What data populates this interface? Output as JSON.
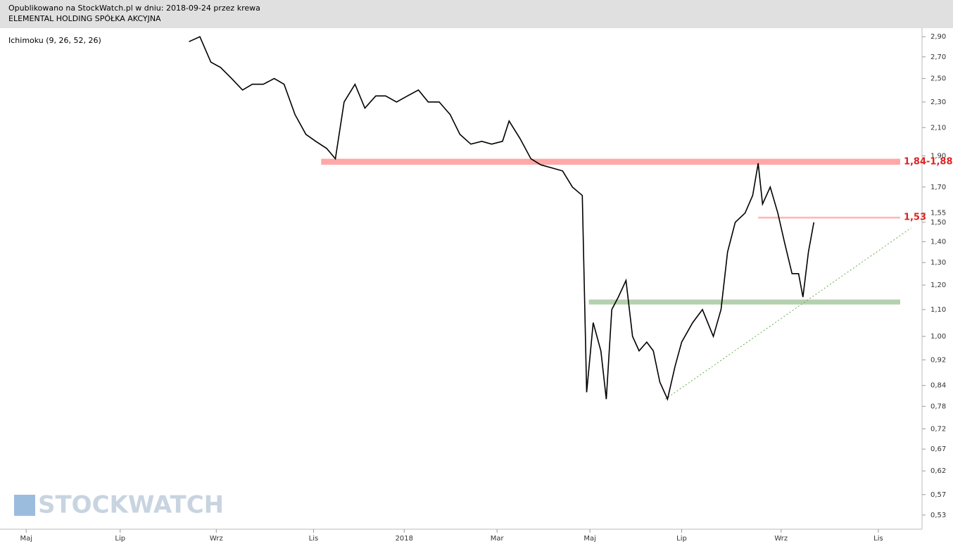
{
  "header": {
    "published": "Opublikowano na StockWatch.pl w dniu: 2018-09-24 przez krewa",
    "company": "ELEMENTAL HOLDING SPÓŁKA AKCYJNA"
  },
  "watermark": "STOCKWATCH",
  "chart_data": {
    "type": "line",
    "indicator": "Ichimoku (9, 26, 52, 26)",
    "log_scale": true,
    "xlim": [
      -2.4,
      82
    ],
    "ylim": [
      0.504,
      2.99
    ],
    "xticks": [
      {
        "value": 0,
        "label": "Maj"
      },
      {
        "value": 8.6,
        "label": "Lip"
      },
      {
        "value": 17.4,
        "label": "Wrz"
      },
      {
        "value": 26.3,
        "label": "Lis"
      },
      {
        "value": 34.6,
        "label": "2018"
      },
      {
        "value": 43.1,
        "label": "Mar"
      },
      {
        "value": 51.6,
        "label": "Maj"
      },
      {
        "value": 60,
        "label": "Lip"
      },
      {
        "value": 69.1,
        "label": "Wrz"
      },
      {
        "value": 78,
        "label": "Lis"
      }
    ],
    "yticks": [
      {
        "value": 2.9,
        "label": "2,90"
      },
      {
        "value": 2.7,
        "label": "2,70"
      },
      {
        "value": 2.5,
        "label": "2,50"
      },
      {
        "value": 2.3,
        "label": "2,30"
      },
      {
        "value": 2.1,
        "label": "2,10"
      },
      {
        "value": 1.9,
        "label": "1,90"
      },
      {
        "value": 1.7,
        "label": "1,70"
      },
      {
        "value": 1.55,
        "label": "1,55"
      },
      {
        "value": 1.5,
        "label": "1,50"
      },
      {
        "value": 1.4,
        "label": "1,40"
      },
      {
        "value": 1.3,
        "label": "1,30"
      },
      {
        "value": 1.2,
        "label": "1,20"
      },
      {
        "value": 1.1,
        "label": "1,10"
      },
      {
        "value": 1,
        "label": "1,00"
      },
      {
        "value": 0.92,
        "label": "0,92"
      },
      {
        "value": 0.84,
        "label": "0,84"
      },
      {
        "value": 0.78,
        "label": "0,78"
      },
      {
        "value": 0.72,
        "label": "0,72"
      },
      {
        "value": 0.67,
        "label": "0,67"
      },
      {
        "value": 0.62,
        "label": "0,62"
      },
      {
        "value": 0.57,
        "label": "0,57"
      },
      {
        "value": 0.53,
        "label": "0,53"
      }
    ],
    "series": [
      {
        "color": "#000000",
        "x": [
          14.9,
          15.9,
          16.9,
          17.8,
          18.8,
          19.8,
          20.7,
          21.7,
          22.7,
          23.6,
          24.6,
          25.6,
          26.5,
          27.5,
          28.3,
          29.1,
          30.1,
          31.0,
          32.0,
          32.9,
          33.9,
          34.9,
          35.9,
          36.8,
          37.8,
          38.8,
          39.7,
          40.7,
          41.7,
          42.6,
          43.6,
          44.2,
          45.2,
          46.2,
          47.1,
          48.1,
          49.1,
          50.0,
          50.9,
          51.3,
          51.9,
          52.6,
          53.1,
          53.6,
          54.2,
          54.9,
          55.5,
          56.1,
          56.8,
          57.4,
          58.0,
          58.7,
          59.4,
          60.0,
          61.0,
          61.9,
          62.9,
          63.6,
          64.2,
          64.9,
          65.8,
          66.5,
          67.0,
          67.4,
          68.1,
          68.8,
          69.4,
          70.1,
          70.7,
          71.1,
          71.6,
          72.1
        ],
        "values": [
          2.85,
          2.9,
          2.65,
          2.6,
          2.5,
          2.4,
          2.45,
          2.45,
          2.5,
          2.45,
          2.2,
          2.05,
          2.0,
          1.95,
          1.88,
          2.3,
          2.45,
          2.25,
          2.35,
          2.35,
          2.3,
          2.35,
          2.4,
          2.3,
          2.3,
          2.2,
          2.05,
          1.98,
          2.0,
          1.98,
          2.0,
          2.15,
          2.02,
          1.88,
          1.84,
          1.82,
          1.8,
          1.7,
          1.65,
          0.82,
          1.05,
          0.95,
          0.8,
          1.1,
          1.15,
          1.22,
          1.0,
          0.95,
          0.98,
          0.95,
          0.85,
          0.8,
          0.9,
          0.98,
          1.05,
          1.1,
          1.0,
          1.1,
          1.35,
          1.5,
          1.55,
          1.65,
          1.85,
          1.6,
          1.7,
          1.55,
          1.4,
          1.25,
          1.25,
          1.15,
          1.35,
          1.5
        ]
      }
    ],
    "annotations": [
      {
        "label": "1,84-1,88",
        "low": 1.84,
        "high": 1.88,
        "x": [
          27,
          80
        ],
        "color": "#ff9999"
      },
      {
        "label": "1,53",
        "low": 1.52,
        "high": 1.53,
        "x": [
          67,
          80
        ],
        "color": "#ffaaaa"
      },
      {
        "low": 1.12,
        "high": 1.14,
        "x": [
          51.5,
          80
        ],
        "color": "#a8c8a0"
      }
    ],
    "trendline": {
      "x": [
        58.5,
        81
      ],
      "y": [
        0.8,
        1.47
      ],
      "color": "#66aa55"
    }
  }
}
